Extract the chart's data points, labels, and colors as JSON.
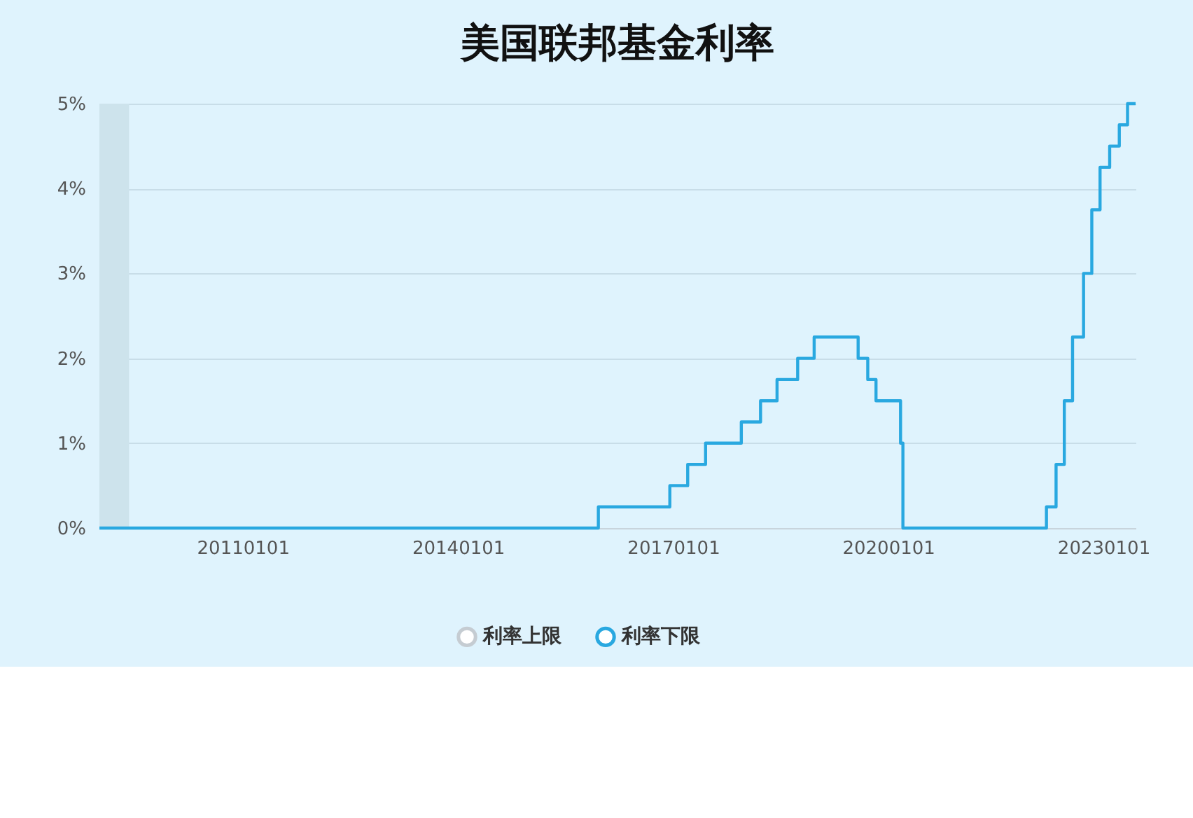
{
  "chart_data": {
    "type": "step",
    "title": "美国联邦基金利率",
    "x": [
      "2009-01-01",
      "2015-12-17",
      "2016-12-15",
      "2017-03-16",
      "2017-06-15",
      "2017-12-14",
      "2018-03-22",
      "2018-06-14",
      "2018-09-27",
      "2018-12-20",
      "2019-08-01",
      "2019-09-19",
      "2019-10-31",
      "2020-03-04",
      "2020-03-16",
      "2022-03-17",
      "2022-05-05",
      "2022-06-16",
      "2022-07-28",
      "2022-09-22",
      "2022-11-03",
      "2022-12-15",
      "2023-02-02",
      "2023-03-23",
      "2023-05-04",
      "2023-06-14"
    ],
    "series": [
      {
        "name": "利率上限",
        "color": "#c5ccd2",
        "values": [
          null,
          null,
          null,
          null,
          null,
          null,
          null,
          null,
          null,
          null,
          null,
          null,
          null,
          null,
          null,
          null,
          null,
          null,
          null,
          null,
          null,
          null,
          null,
          null,
          null,
          null
        ]
      },
      {
        "name": "利率下限",
        "color": "#29a8e0",
        "values": [
          0,
          0.25,
          0.5,
          0.75,
          1.0,
          1.25,
          1.5,
          1.75,
          2.0,
          2.25,
          2.0,
          1.75,
          1.5,
          1.0,
          0,
          0.25,
          0.75,
          1.5,
          2.25,
          3.0,
          3.75,
          4.25,
          4.5,
          4.75,
          5.0,
          5.0
        ]
      }
    ],
    "xlim": [
      "2009-01-01",
      "2023-06-14"
    ],
    "xticks": [
      {
        "value": "2011-01-01",
        "label": "20110101"
      },
      {
        "value": "2014-01-01",
        "label": "20140101"
      },
      {
        "value": "2017-01-01",
        "label": "20170101"
      },
      {
        "value": "2020-01-01",
        "label": "20200101"
      },
      {
        "value": "2023-01-01",
        "label": "20230101"
      }
    ],
    "ylim": [
      0,
      5
    ],
    "yticks": [
      {
        "value": 0,
        "label": "0%"
      },
      {
        "value": 1,
        "label": "1%"
      },
      {
        "value": 2,
        "label": "2%"
      },
      {
        "value": 3,
        "label": "3%"
      },
      {
        "value": 4,
        "label": "4%"
      },
      {
        "value": 5,
        "label": "5%"
      }
    ],
    "bands": [
      {
        "axis": "x",
        "from": "2009-01-01",
        "to": "2009-06-01",
        "color": "#cde3ec"
      }
    ],
    "grid": "y",
    "legend": "bottom",
    "marker": "none",
    "line_style": "solid"
  }
}
